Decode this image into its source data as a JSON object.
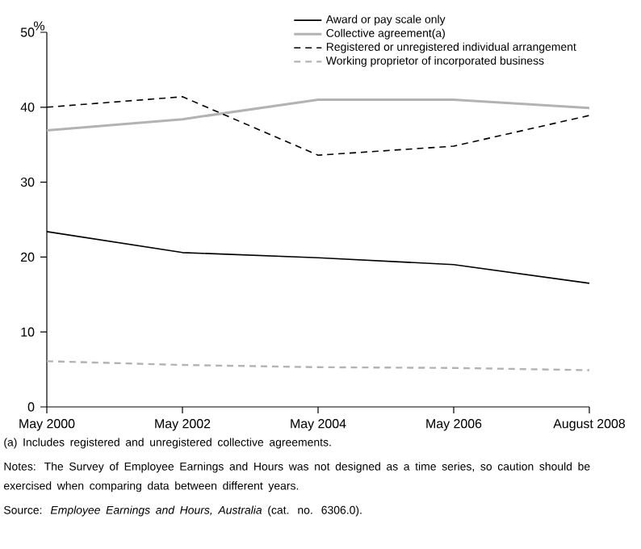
{
  "chart_data": {
    "type": "line",
    "ylabel": "%",
    "categories": [
      "May 2000",
      "May 2002",
      "May 2004",
      "May 2006",
      "August 2008"
    ],
    "series": [
      {
        "name": "Award or pay scale only",
        "color": "#000000",
        "line_style": "solid",
        "values": [
          23.4,
          20.6,
          19.9,
          19.0,
          16.5
        ]
      },
      {
        "name": "Collective agreement(a)",
        "color": "#b3b3b3",
        "line_style": "solid",
        "values": [
          36.9,
          38.4,
          41.0,
          41.0,
          39.9
        ]
      },
      {
        "name": "Registered or unregistered individual arrangement",
        "color": "#000000",
        "line_style": "dashed",
        "values": [
          40.0,
          41.4,
          33.6,
          34.8,
          38.9
        ]
      },
      {
        "name": "Working proprietor of incorporated business",
        "color": "#b3b3b3",
        "line_style": "dashed",
        "values": [
          6.1,
          5.6,
          5.3,
          5.2,
          4.9
        ]
      }
    ],
    "ylim": [
      0,
      50
    ],
    "yticks": [
      0,
      10,
      20,
      30,
      40,
      50
    ],
    "grid": false,
    "legend": "top right",
    "marker": "none",
    "annotations": [
      "(a) Includes registered and unregistered collective agreements.",
      "Notes: The Survey of Employee Earnings and Hours was not designed as a time series, so caution should be exercised when comparing data between different years.",
      "Source: *Employee Earnings and Hours, Australia* (cat. no. 6306.0)."
    ]
  }
}
